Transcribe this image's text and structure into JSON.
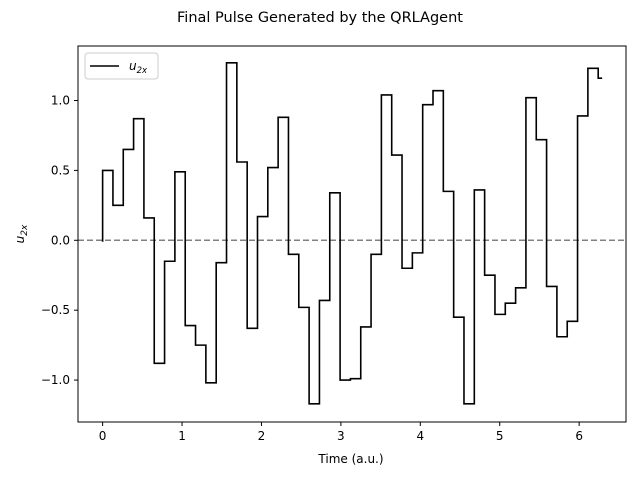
{
  "chart_data": {
    "type": "line",
    "step": "post",
    "title": "Final Pulse Generated by the QRLAgent",
    "xlabel": "Time (a.u.)",
    "ylabel_main": "u",
    "ylabel_sub": "2x",
    "xlim": [
      -0.31,
      6.59
    ],
    "ylim": [
      -1.3,
      1.39
    ],
    "xticks": [
      0,
      1,
      2,
      3,
      4,
      5,
      6
    ],
    "yticks": [
      -1.0,
      -0.5,
      0.0,
      0.5,
      1.0
    ],
    "ytick_labels": [
      "−1.0",
      "−0.5",
      "0.0",
      "0.5",
      "1.0"
    ],
    "legend": {
      "placement": "top-left",
      "entries": [
        {
          "main": "u",
          "sub": "2x"
        }
      ]
    },
    "reference_line": {
      "y": 0.0,
      "style": "dashed",
      "color": "#808080"
    },
    "series": [
      {
        "color": "#000000",
        "x": [
          0.0,
          0.0,
          0.13,
          0.26,
          0.39,
          0.52,
          0.65,
          0.78,
          0.91,
          1.04,
          1.17,
          1.3,
          1.43,
          1.56,
          1.69,
          1.82,
          1.95,
          2.08,
          2.21,
          2.34,
          2.47,
          2.6,
          2.73,
          2.86,
          2.99,
          3.12,
          3.25,
          3.38,
          3.51,
          3.64,
          3.77,
          3.9,
          4.03,
          4.16,
          4.29,
          4.42,
          4.55,
          4.68,
          4.81,
          4.94,
          5.07,
          5.2,
          5.33,
          5.46,
          5.59,
          5.72,
          5.85,
          5.98,
          6.11,
          6.24
        ],
        "y": [
          -0.01,
          0.5,
          0.25,
          0.65,
          0.87,
          0.16,
          -0.88,
          -0.15,
          0.49,
          -0.61,
          -0.75,
          -1.02,
          -0.16,
          1.27,
          0.56,
          -0.63,
          0.17,
          0.52,
          0.88,
          -0.1,
          -0.48,
          -1.17,
          -0.43,
          0.34,
          -1.0,
          -0.99,
          -0.62,
          -0.1,
          1.04,
          0.61,
          -0.2,
          -0.09,
          0.97,
          1.07,
          0.35,
          -0.55,
          -1.17,
          0.36,
          -0.25,
          -0.53,
          -0.45,
          -0.34,
          1.02,
          0.72,
          -0.33,
          -0.69,
          -0.58,
          0.89,
          1.23,
          1.16
        ],
        "end_x": 6.29
      }
    ]
  }
}
